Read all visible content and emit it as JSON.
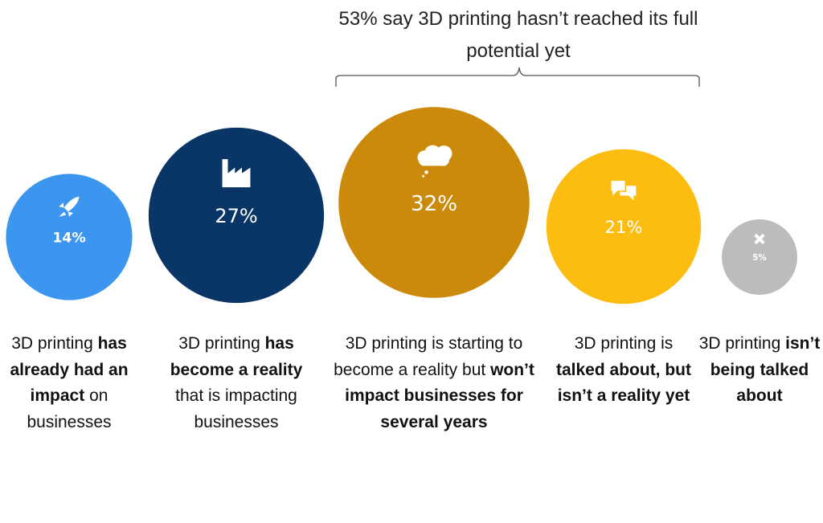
{
  "chart_data": {
    "type": "bubble-row",
    "annotation": "53% say 3D printing hasn’t reached its full potential yet",
    "values": [
      14,
      27,
      32,
      21,
      5
    ],
    "value_labels": [
      "14%",
      "27%",
      "32%",
      "21%",
      "5%"
    ],
    "colors": [
      "#3c96f0",
      "#0a3567",
      "#cc8a0a",
      "#fdbd10",
      "#bcbcbc"
    ],
    "descriptions": [
      [
        {
          "text": "3D printing",
          "bold": false
        },
        {
          "text": "has already had an impact",
          "bold": true
        },
        {
          "text": "on businesses",
          "bold": false
        }
      ],
      [
        {
          "text": "3D printing",
          "bold": false
        },
        {
          "text": "has become a reality",
          "bold": true
        },
        {
          "text": "that is impacting businesses",
          "bold": false
        }
      ],
      [
        {
          "text": "3D printing is starting to become a reality but",
          "bold": false
        },
        {
          "text": "won’t impact businesses for several years",
          "bold": true
        }
      ],
      [
        {
          "text": "3D printing is",
          "bold": false
        },
        {
          "text": "talked about, but isn’t a reality yet",
          "bold": true
        }
      ],
      [
        {
          "text": "3D printing",
          "bold": false
        },
        {
          "text": "isn’t being talked about",
          "bold": true
        }
      ]
    ]
  }
}
